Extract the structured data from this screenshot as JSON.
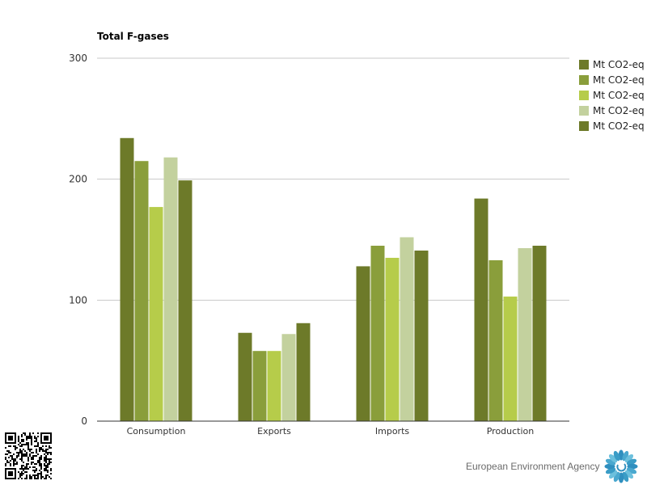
{
  "chart_data": {
    "type": "bar",
    "title": "Total F-gases",
    "xlabel": "",
    "ylabel": "",
    "ylim": [
      0,
      300
    ],
    "yticks": [
      0,
      100,
      200,
      300
    ],
    "grid": true,
    "legend_position": "right",
    "categories": [
      "Consumption",
      "Exports",
      "Imports",
      "Production"
    ],
    "series": [
      {
        "name": "Mt CO2-eq",
        "color": "#6d7a29",
        "values": [
          234,
          73,
          128,
          184
        ]
      },
      {
        "name": "Mt CO2-eq",
        "color": "#8a9e3b",
        "values": [
          215,
          58,
          145,
          133
        ]
      },
      {
        "name": "Mt CO2-eq",
        "color": "#b6cc4a",
        "values": [
          177,
          58,
          135,
          103
        ]
      },
      {
        "name": "Mt CO2-eq",
        "color": "#c3d19e",
        "values": [
          218,
          72,
          152,
          143
        ]
      },
      {
        "name": "Mt CO2-eq",
        "color": "#6d7a29",
        "values": [
          199,
          81,
          141,
          145
        ]
      }
    ]
  },
  "footer": {
    "agency_name": "European Environment Agency",
    "qr_icon": "qr-code-icon",
    "logo_icon": "eea-logo-icon"
  }
}
